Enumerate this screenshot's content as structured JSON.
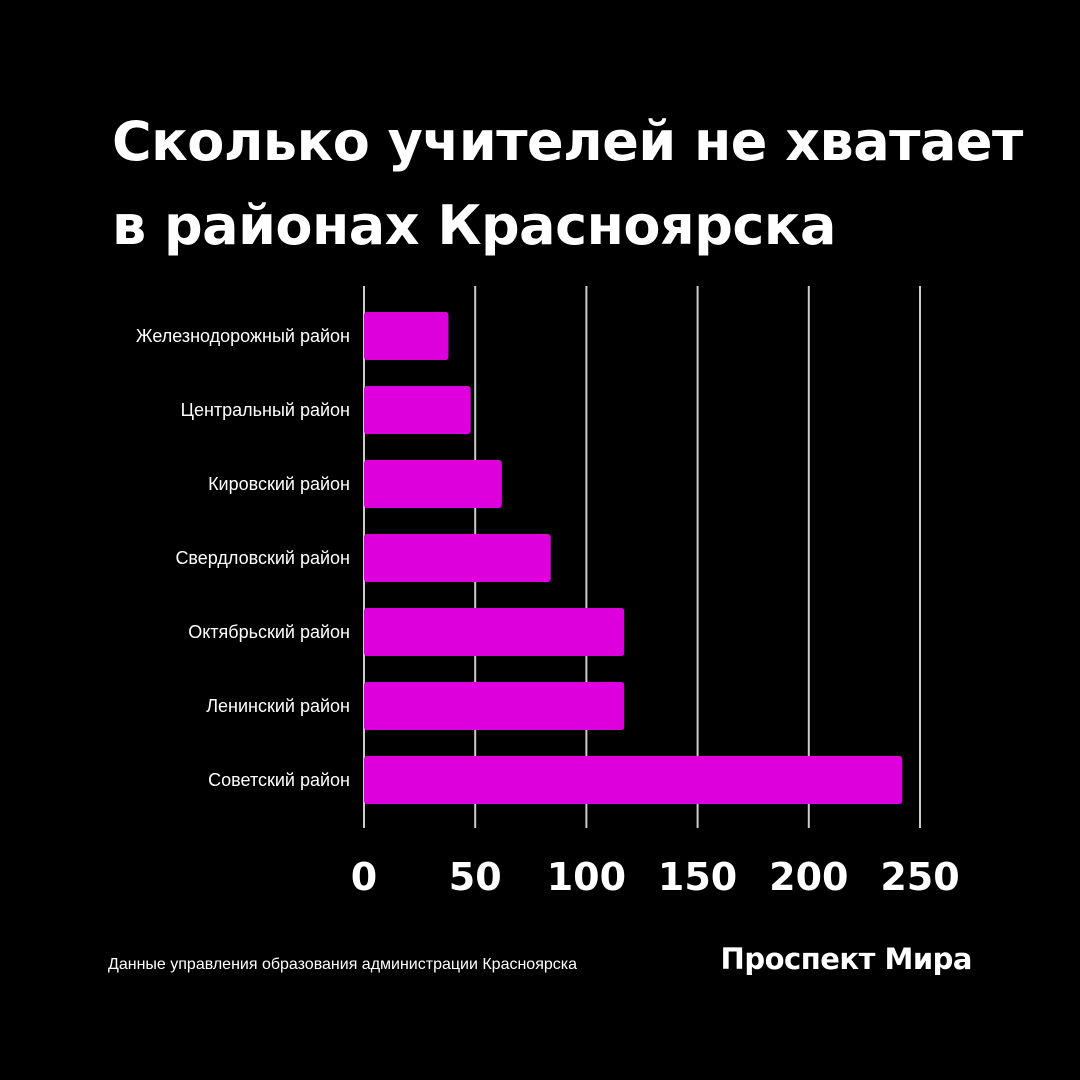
{
  "title": {
    "line1": "Сколько учителей не хватает",
    "line2": "в районах Красноярска"
  },
  "footer": {
    "source": "Данные управления образования администрации Красноярска",
    "brand": "Проспект Мира"
  },
  "colors": {
    "background": "#000000",
    "bar": "#DD00DD",
    "grid": "#cccccc",
    "text": "#ffffff"
  },
  "chart_data": {
    "type": "bar",
    "orientation": "horizontal",
    "categories": [
      "Железнодорожный район",
      "Центральный район",
      "Кировский район",
      "Свердловский район",
      "Октябрьский район",
      "Ленинский район",
      "Советский район"
    ],
    "values": [
      38,
      48,
      62,
      84,
      117,
      117,
      242
    ],
    "xlim": [
      0,
      250
    ],
    "xticks": [
      "0",
      "50",
      "100",
      "150",
      "200",
      "250"
    ],
    "grid": "vertical",
    "legend": "none"
  }
}
